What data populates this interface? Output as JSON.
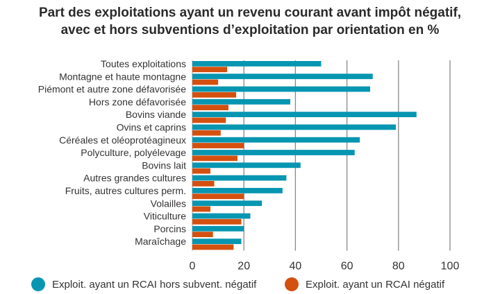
{
  "chart_data": {
    "type": "bar",
    "orientation": "horizontal",
    "title": "Part des exploitations ayant un revenu courant avant impôt négatif, avec et hors subventions d’exploitation par orientation en %",
    "title_lines": [
      "Part des exploitations ayant un revenu courant avant impôt négatif,",
      "avec et hors subventions d’exploitation par orientation en %"
    ],
    "categories": [
      "Toutes exploitations",
      "Montagne et haute montagne",
      "Piémont et autre zone défavorisée",
      "Hors zone défavorisée",
      "Bovins viande",
      "Ovins et caprins",
      "Céréales et oléoprotéagineux",
      "Polyculture, polyélevage",
      "Bovins lait",
      "Autres grandes cultures",
      "Fruits, autres cultures perm.",
      "Volailles",
      "Viticulture",
      "Porcins",
      "Maraîchage"
    ],
    "series": [
      {
        "name": "Exploit. ayant un RCAI hors subvent. négatif",
        "color": "#0796b1",
        "values": [
          50,
          70,
          69,
          38,
          87,
          79,
          65,
          63,
          42,
          36.5,
          35,
          27,
          22.5,
          20,
          19
        ]
      },
      {
        "name": "Exploit. ayant un RCAI négatif",
        "color": "#d4500f",
        "values": [
          13.5,
          10,
          17,
          14,
          13,
          11,
          20,
          17.5,
          7,
          8.5,
          20,
          7,
          19,
          8,
          16
        ]
      }
    ],
    "xlim": [
      0,
      100
    ],
    "xticks": [
      "0",
      "20",
      "40",
      "60",
      "80",
      "100"
    ],
    "grid": true,
    "legend_position": "bottom"
  }
}
